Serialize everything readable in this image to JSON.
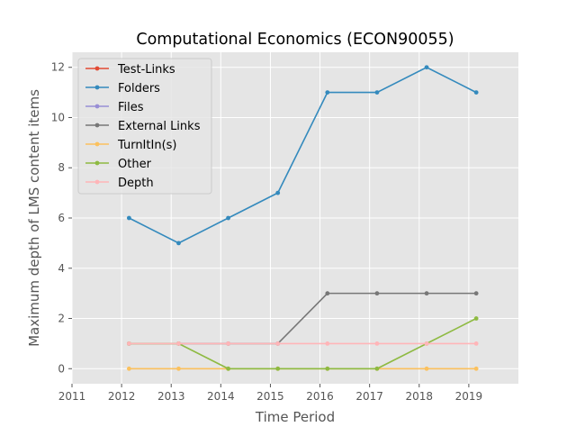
{
  "chart_data": {
    "type": "line",
    "title": "Computational Economics (ECON90055)",
    "xlabel": "Time Period",
    "ylabel": "Maximum depth of LMS content items",
    "x": [
      2012.15,
      2013.15,
      2014.15,
      2015.15,
      2016.15,
      2017.15,
      2018.15,
      2019.15
    ],
    "xticks": [
      2011,
      2012,
      2013,
      2014,
      2015,
      2016,
      2017,
      2018,
      2019
    ],
    "xtick_labels": [
      "2011",
      "2012",
      "2013",
      "2014",
      "2015",
      "2016",
      "2017",
      "2018",
      "2019"
    ],
    "yticks": [
      0,
      2,
      4,
      6,
      8,
      10,
      12
    ],
    "ytick_labels": [
      "0",
      "2",
      "4",
      "6",
      "8",
      "10",
      "12"
    ],
    "xlim": [
      2011,
      2020
    ],
    "ylim": [
      -0.6,
      12.6
    ],
    "grid": true,
    "legend_position": "top-left",
    "background": "#e5e5e5",
    "series": [
      {
        "name": "Test-Links",
        "color": "#e24a33",
        "values": [
          null,
          null,
          null,
          null,
          null,
          null,
          null,
          null
        ]
      },
      {
        "name": "Folders",
        "color": "#348abd",
        "values": [
          6,
          5,
          6,
          7,
          11,
          11,
          12,
          11
        ]
      },
      {
        "name": "Files",
        "color": "#988ed5",
        "values": [
          null,
          null,
          null,
          null,
          null,
          null,
          null,
          null
        ]
      },
      {
        "name": "External Links",
        "color": "#777777",
        "values": [
          1,
          1,
          1,
          1,
          3,
          3,
          3,
          3
        ]
      },
      {
        "name": "TurnItIn(s)",
        "color": "#fbc15e",
        "values": [
          0,
          0,
          0,
          0,
          0,
          0,
          0,
          0
        ]
      },
      {
        "name": "Other",
        "color": "#8eba42",
        "values": [
          1,
          1,
          0,
          0,
          0,
          0,
          1,
          2
        ]
      },
      {
        "name": "Depth",
        "color": "#ffb5b8",
        "values": [
          1,
          1,
          1,
          1,
          1,
          1,
          1,
          1
        ]
      }
    ]
  }
}
